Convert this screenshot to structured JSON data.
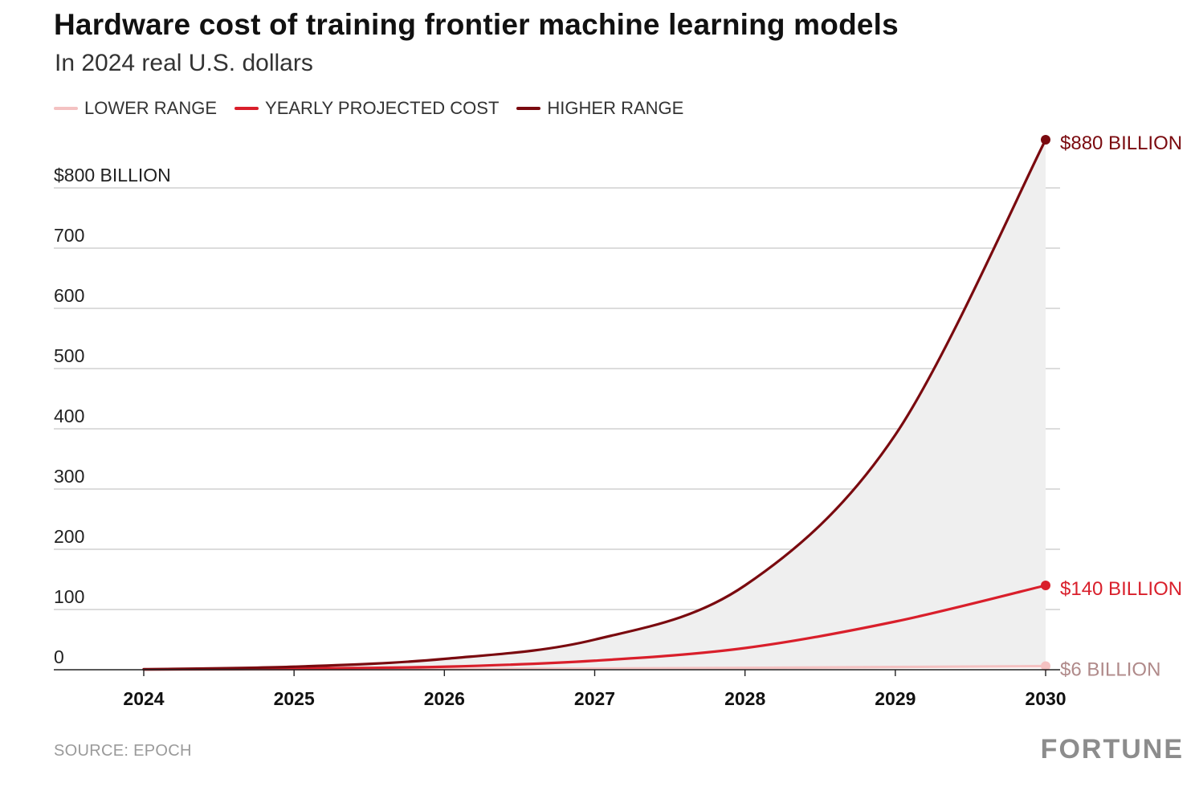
{
  "header": {
    "title": "Hardware cost of training frontier machine learning models",
    "subtitle": "In 2024 real U.S. dollars"
  },
  "footer": {
    "source": "SOURCE: EPOCH",
    "brand": "FORTUNE"
  },
  "colors": {
    "lower": "#f4c2c2",
    "projected": "#d91f2b",
    "higher": "#7a0a0f",
    "band": "#efefef",
    "grid": "#c8c8c8",
    "axis": "#222222"
  },
  "chart_data": {
    "type": "area",
    "ylim": [
      0,
      880
    ],
    "xlim": [
      2024,
      2030
    ],
    "yticks": [
      {
        "value": 800,
        "label": "$800 BILLION"
      },
      {
        "value": 700,
        "label": "700"
      },
      {
        "value": 600,
        "label": "600"
      },
      {
        "value": 500,
        "label": "500"
      },
      {
        "value": 400,
        "label": "400"
      },
      {
        "value": 300,
        "label": "300"
      },
      {
        "value": 200,
        "label": "200"
      },
      {
        "value": 100,
        "label": "100"
      },
      {
        "value": 0,
        "label": "0"
      }
    ],
    "xticks": [
      "2024",
      "2025",
      "2026",
      "2027",
      "2028",
      "2029",
      "2030"
    ],
    "legend_position": "top-left",
    "grid": true,
    "series": [
      {
        "key": "lower",
        "name": "LOWER RANGE",
        "end_label": "$6 BILLION",
        "x": [
          2024,
          2025,
          2026,
          2027,
          2028,
          2029,
          2030
        ],
        "values": [
          0.2,
          0.5,
          1.0,
          2.0,
          3.0,
          4.5,
          6
        ]
      },
      {
        "key": "projected",
        "name": "YEARLY PROJECTED COST",
        "end_label": "$140 BILLION",
        "x": [
          2024,
          2025,
          2026,
          2027,
          2028,
          2029,
          2030
        ],
        "values": [
          0.5,
          2,
          5,
          15,
          36,
          80,
          140
        ]
      },
      {
        "key": "higher",
        "name": "HIGHER RANGE",
        "end_label": "$880 BILLION",
        "x": [
          2024,
          2025,
          2026,
          2027,
          2028,
          2029,
          2030
        ],
        "values": [
          0.8,
          5,
          18,
          50,
          140,
          390,
          880
        ]
      }
    ]
  }
}
